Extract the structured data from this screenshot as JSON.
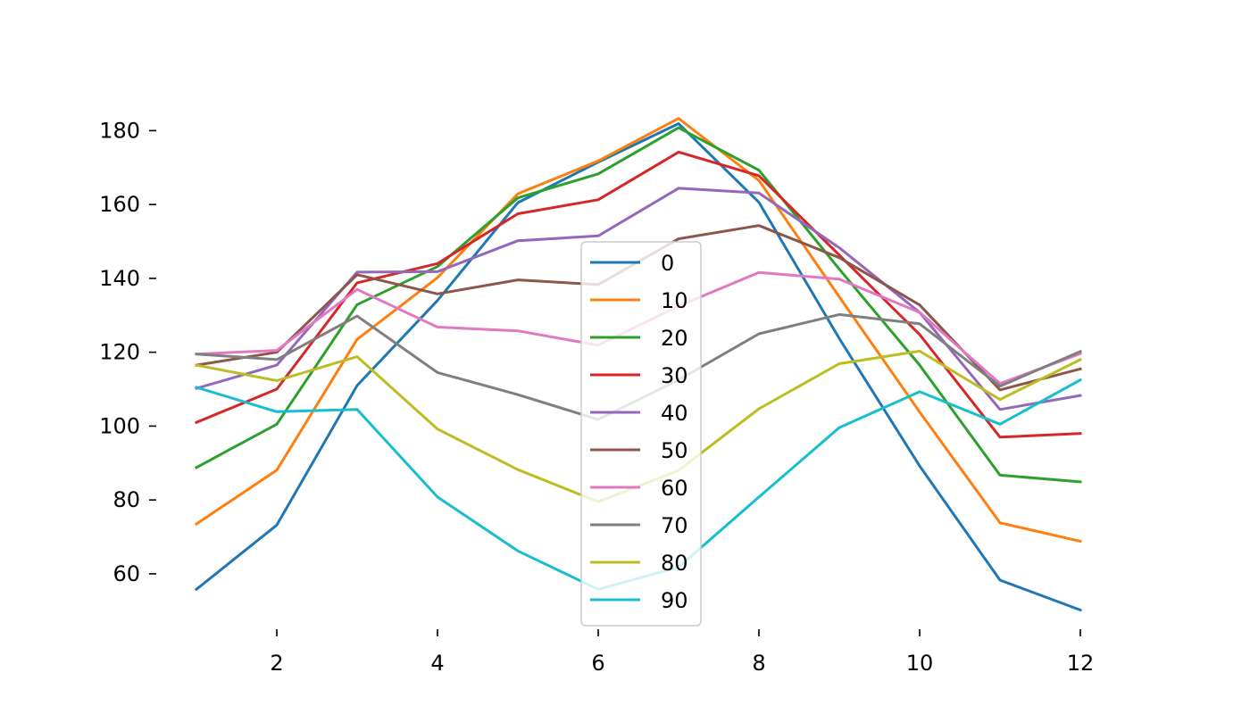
{
  "chart_data": {
    "type": "line",
    "title": "",
    "xlabel": "",
    "ylabel": "",
    "x": [
      1,
      2,
      3,
      4,
      5,
      6,
      7,
      8,
      9,
      10,
      11,
      12
    ],
    "xlim": [
      0.5,
      12.5
    ],
    "ylim": [
      45,
      190
    ],
    "xticks": [
      2,
      4,
      6,
      8,
      10,
      12
    ],
    "yticks": [
      60,
      80,
      100,
      120,
      140,
      160,
      180
    ],
    "grid": false,
    "legend_placement": "center",
    "series": [
      {
        "name": "0",
        "color": "#1f77b4",
        "values": [
          55.8,
          73.2,
          111.0,
          134.0,
          160.5,
          171.5,
          181.9,
          160.6,
          123.7,
          89.2,
          58.3,
          50.2
        ]
      },
      {
        "name": "10",
        "color": "#ff7f0e",
        "values": [
          73.5,
          88.1,
          123.5,
          140.2,
          162.9,
          171.8,
          183.3,
          166.5,
          135.0,
          103.8,
          73.8,
          68.8
        ]
      },
      {
        "name": "20",
        "color": "#2ca02c",
        "values": [
          88.8,
          100.5,
          132.9,
          143.2,
          161.8,
          168.3,
          180.8,
          169.3,
          142.5,
          116.5,
          86.7,
          84.9
        ]
      },
      {
        "name": "30",
        "color": "#d62728",
        "values": [
          101.0,
          110.0,
          138.8,
          144.0,
          157.5,
          161.3,
          174.2,
          167.8,
          146.3,
          124.8,
          97.0,
          98.0
        ]
      },
      {
        "name": "40",
        "color": "#9467bd",
        "values": [
          110.2,
          116.5,
          141.7,
          141.8,
          150.2,
          151.5,
          164.4,
          163.1,
          148.3,
          130.8,
          104.5,
          108.3
        ]
      },
      {
        "name": "50",
        "color": "#8c564b",
        "values": [
          116.5,
          120.0,
          141.0,
          135.8,
          139.6,
          138.3,
          150.7,
          154.3,
          145.6,
          132.8,
          109.8,
          115.5
        ]
      },
      {
        "name": "60",
        "color": "#e377c2",
        "values": [
          119.5,
          120.5,
          137.0,
          126.8,
          125.8,
          121.9,
          132.5,
          141.6,
          139.8,
          130.8,
          111.5,
          119.6
        ]
      },
      {
        "name": "70",
        "color": "#7f7f7f",
        "values": [
          119.5,
          118.0,
          129.8,
          114.5,
          108.5,
          101.8,
          112.5,
          125.0,
          130.2,
          127.7,
          110.8,
          120.2
        ]
      },
      {
        "name": "80",
        "color": "#bcbd22",
        "values": [
          116.5,
          112.3,
          118.8,
          99.2,
          88.2,
          79.5,
          88.0,
          104.7,
          116.9,
          120.3,
          107.2,
          118.0
        ]
      },
      {
        "name": "90",
        "color": "#17becf",
        "values": [
          110.5,
          103.9,
          104.5,
          80.8,
          66.2,
          55.8,
          61.8,
          80.8,
          99.6,
          109.3,
          100.5,
          112.5
        ]
      }
    ]
  }
}
